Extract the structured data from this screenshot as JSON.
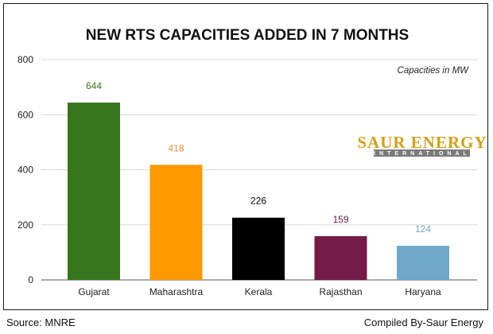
{
  "chart_data": {
    "type": "bar",
    "title": "NEW RTS CAPACITIES ADDED IN 7 MONTHS",
    "categories": [
      "Gujarat",
      "Maharashtra",
      "Kerala",
      "Rajasthan",
      "Haryana"
    ],
    "values": [
      644,
      418,
      226,
      159,
      124
    ],
    "data_labels": [
      "644",
      "418",
      "226",
      "159",
      "124"
    ],
    "bar_colors": [
      "#38761d",
      "#ff9900",
      "#000000",
      "#741b47",
      "#6fa8c8"
    ],
    "label_colors": [
      "#38761d",
      "#e69138",
      "#000000",
      "#741b47",
      "#6fa8c8"
    ],
    "ylim": [
      0,
      800
    ],
    "yticks": [
      0,
      200,
      400,
      600,
      800
    ],
    "ytick_labels": [
      "0",
      "200",
      "400",
      "600",
      "800"
    ],
    "xlabel": "",
    "ylabel": "",
    "grid": true,
    "legend": "none",
    "annotation": "Capacities in MW"
  },
  "logo": {
    "main": "SAUR ENERGY",
    "sub": "INTERNATIONAL",
    "main_color": "#d4a017"
  },
  "footer": {
    "source": "Source: MNRE",
    "credit": "Compiled By-Saur Energy"
  }
}
